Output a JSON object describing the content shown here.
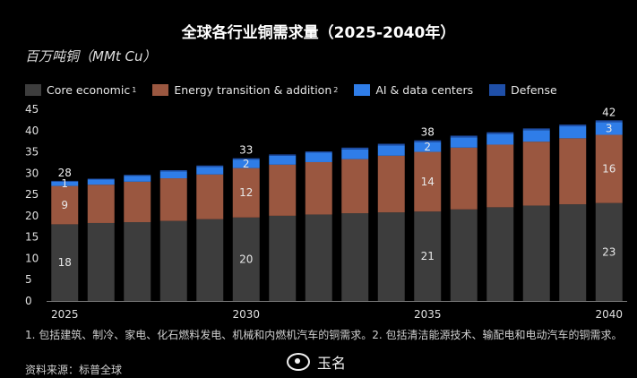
{
  "chart_data": {
    "type": "bar",
    "stacked": true,
    "title": "全球各行业铜需求量（2025-2040年）",
    "ylabel": "百万吨铜（MMt Cu）",
    "xlabel": "",
    "ylim": [
      0,
      45
    ],
    "yticks": [
      0,
      5,
      10,
      15,
      20,
      25,
      30,
      35,
      40,
      45
    ],
    "categories": [
      "2025",
      "2026",
      "2027",
      "2028",
      "2029",
      "2030",
      "2031",
      "2032",
      "2033",
      "2034",
      "2035",
      "2036",
      "2037",
      "2038",
      "2039",
      "2040"
    ],
    "x_tick_labels": [
      "2025",
      "",
      "",
      "",
      "",
      "2030",
      "",
      "",
      "",
      "",
      "2035",
      "",
      "",
      "",
      "",
      "2040"
    ],
    "series": [
      {
        "name": "Core economic",
        "sup": "1",
        "color": "#3d3d3d",
        "values": [
          18,
          18.3,
          18.5,
          18.8,
          19.2,
          19.6,
          20,
          20.3,
          20.6,
          20.8,
          21,
          21.5,
          22,
          22.4,
          22.7,
          23
        ]
      },
      {
        "name": "Energy transition & addition",
        "sup": "2",
        "color": "#9a5740",
        "values": [
          9,
          9,
          9.5,
          10,
          10.5,
          11.6,
          12,
          12.3,
          12.7,
          13.3,
          14,
          14.5,
          14.7,
          15,
          15.5,
          16
        ]
      },
      {
        "name": "AI & data centers",
        "sup": "",
        "color": "#2f7de8",
        "values": [
          1,
          1.2,
          1.4,
          1.6,
          1.8,
          2,
          2.1,
          2.2,
          2.3,
          2.4,
          2.3,
          2.4,
          2.5,
          2.7,
          2.8,
          3
        ]
      },
      {
        "name": "Defense",
        "sup": "",
        "color": "#1f4fa8",
        "values": [
          0.2,
          0.2,
          0.2,
          0.3,
          0.3,
          0.3,
          0.3,
          0.3,
          0.4,
          0.4,
          0.4,
          0.4,
          0.4,
          0.4,
          0.4,
          0.4
        ]
      }
    ],
    "bar_labels": [
      {
        "index": 0,
        "series": 0,
        "text": "18"
      },
      {
        "index": 0,
        "series": 1,
        "text": "9"
      },
      {
        "index": 0,
        "series": 2,
        "text": "1"
      },
      {
        "index": 5,
        "series": 0,
        "text": "20"
      },
      {
        "index": 5,
        "series": 1,
        "text": "12"
      },
      {
        "index": 5,
        "series": 2,
        "text": "2"
      },
      {
        "index": 10,
        "series": 0,
        "text": "21"
      },
      {
        "index": 10,
        "series": 1,
        "text": "14"
      },
      {
        "index": 10,
        "series": 2,
        "text": "2"
      },
      {
        "index": 15,
        "series": 0,
        "text": "23"
      },
      {
        "index": 15,
        "series": 1,
        "text": "16"
      },
      {
        "index": 15,
        "series": 2,
        "text": "3"
      }
    ],
    "total_labels": [
      {
        "index": 0,
        "text": "28"
      },
      {
        "index": 5,
        "text": "33"
      },
      {
        "index": 10,
        "text": "38"
      },
      {
        "index": 15,
        "text": "42"
      }
    ]
  },
  "footnote": "1. 包括建筑、制冷、家电、化石燃料发电、机械和内燃机汽车的铜需求。2. 包括清洁能源技术、输配电和电动汽车的铜需求。",
  "source": "资料来源：标普全球",
  "watermark": "玉名"
}
